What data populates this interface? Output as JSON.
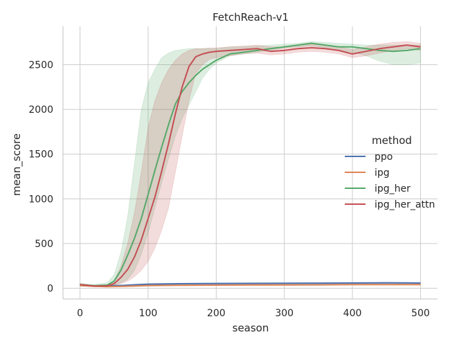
{
  "chart_data": {
    "type": "line",
    "title": "FetchReach-v1",
    "xlabel": "season",
    "ylabel": "mean_score",
    "xlim": [
      -25,
      525
    ],
    "ylim": [
      -120,
      2930
    ],
    "xticks": [
      0,
      100,
      200,
      300,
      400,
      500
    ],
    "yticks": [
      0,
      500,
      1000,
      1500,
      2000,
      2500
    ],
    "grid": true,
    "legend": {
      "title": "method",
      "placement": "center-right"
    },
    "series": [
      {
        "name": "ppo",
        "color": "#4c72b0",
        "x": [
          0,
          20,
          40,
          60,
          80,
          100,
          150,
          200,
          250,
          300,
          350,
          400,
          450,
          500
        ],
        "y": [
          35,
          28,
          25,
          30,
          38,
          45,
          50,
          52,
          54,
          55,
          56,
          58,
          60,
          58
        ],
        "band_low": [
          25,
          22,
          20,
          24,
          30,
          36,
          42,
          44,
          46,
          47,
          48,
          50,
          52,
          50
        ],
        "band_high": [
          45,
          34,
          30,
          36,
          46,
          54,
          58,
          60,
          62,
          63,
          64,
          66,
          68,
          66
        ]
      },
      {
        "name": "ipg",
        "color": "#dd8452",
        "x": [
          0,
          20,
          40,
          60,
          80,
          100,
          150,
          200,
          250,
          300,
          350,
          400,
          450,
          500
        ],
        "y": [
          30,
          22,
          18,
          20,
          25,
          30,
          33,
          35,
          36,
          37,
          38,
          40,
          40,
          40
        ],
        "band_low": [
          22,
          16,
          12,
          14,
          18,
          22,
          26,
          28,
          29,
          30,
          31,
          33,
          33,
          33
        ],
        "band_high": [
          38,
          28,
          24,
          26,
          32,
          38,
          40,
          42,
          43,
          44,
          45,
          47,
          47,
          47
        ]
      },
      {
        "name": "ipg_her",
        "color": "#55a868",
        "x": [
          0,
          20,
          40,
          50,
          60,
          70,
          80,
          90,
          100,
          110,
          120,
          130,
          140,
          150,
          160,
          170,
          180,
          190,
          200,
          220,
          240,
          260,
          280,
          300,
          320,
          340,
          360,
          380,
          400,
          420,
          440,
          460,
          480,
          500
        ],
        "y": [
          40,
          28,
          35,
          80,
          200,
          370,
          560,
          780,
          1050,
          1320,
          1580,
          1830,
          2060,
          2200,
          2300,
          2380,
          2450,
          2500,
          2550,
          2620,
          2640,
          2660,
          2680,
          2700,
          2720,
          2740,
          2720,
          2700,
          2700,
          2680,
          2660,
          2650,
          2660,
          2680
        ],
        "band_low": [
          25,
          18,
          20,
          30,
          60,
          100,
          200,
          380,
          620,
          900,
          1180,
          1450,
          1700,
          1900,
          2050,
          2200,
          2350,
          2450,
          2520,
          2600,
          2620,
          2640,
          2660,
          2690,
          2700,
          2710,
          2690,
          2660,
          2640,
          2600,
          2540,
          2500,
          2500,
          2520
        ],
        "band_high": [
          55,
          40,
          60,
          150,
          400,
          800,
          1400,
          2000,
          2300,
          2450,
          2580,
          2630,
          2660,
          2670,
          2680,
          2680,
          2680,
          2680,
          2680,
          2700,
          2700,
          2710,
          2720,
          2730,
          2740,
          2760,
          2750,
          2740,
          2730,
          2720,
          2720,
          2720,
          2720,
          2720
        ]
      },
      {
        "name": "ipg_her_attn",
        "color": "#c44e52",
        "x": [
          0,
          20,
          40,
          50,
          60,
          70,
          80,
          90,
          100,
          110,
          120,
          130,
          140,
          150,
          160,
          170,
          180,
          190,
          200,
          220,
          240,
          260,
          280,
          300,
          320,
          340,
          360,
          380,
          400,
          420,
          440,
          460,
          480,
          500
        ],
        "y": [
          40,
          25,
          25,
          50,
          120,
          210,
          350,
          540,
          780,
          1020,
          1310,
          1620,
          1950,
          2250,
          2480,
          2590,
          2620,
          2640,
          2650,
          2660,
          2670,
          2680,
          2650,
          2660,
          2680,
          2690,
          2680,
          2660,
          2620,
          2650,
          2680,
          2700,
          2720,
          2700
        ],
        "band_low": [
          30,
          18,
          18,
          30,
          50,
          80,
          130,
          200,
          300,
          450,
          650,
          900,
          1300,
          1700,
          2100,
          2400,
          2500,
          2560,
          2580,
          2600,
          2620,
          2630,
          2610,
          2620,
          2640,
          2650,
          2640,
          2620,
          2580,
          2600,
          2630,
          2660,
          2680,
          2660
        ],
        "band_high": [
          50,
          32,
          35,
          80,
          250,
          500,
          850,
          1300,
          1800,
          2100,
          2300,
          2450,
          2550,
          2620,
          2660,
          2680,
          2680,
          2690,
          2690,
          2700,
          2710,
          2720,
          2700,
          2700,
          2720,
          2730,
          2720,
          2700,
          2670,
          2700,
          2730,
          2750,
          2760,
          2740
        ]
      }
    ]
  }
}
